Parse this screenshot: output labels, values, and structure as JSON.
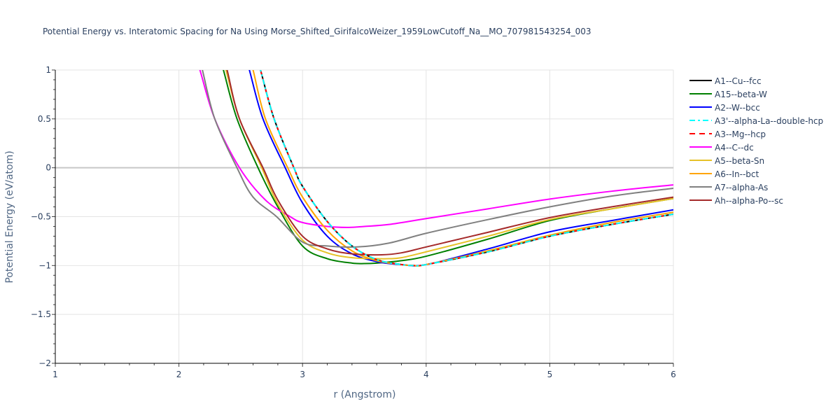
{
  "chart_data": {
    "type": "line",
    "title": "Potential Energy vs. Interatomic Spacing for Na Using Morse_Shifted_GirifalcoWeizer_1959LowCutoff_Na__MO_707981543254_003",
    "xlabel": "r (Angstrom)",
    "ylabel": "Potential Energy (eV/atom)",
    "xlim": [
      1,
      6
    ],
    "ylim": [
      -2,
      1
    ],
    "xticks": [
      "1",
      "2",
      "3",
      "4",
      "5",
      "6"
    ],
    "yticks": [
      "1",
      "0.5",
      "0",
      "−0.5",
      "−1",
      "−1.5",
      "−2"
    ],
    "grid": true,
    "legend_position": "right",
    "series": [
      {
        "name": "A1--Cu--fcc",
        "color": "#000000",
        "dash": "solid",
        "x": [
          2.66,
          2.77,
          2.93,
          3.0,
          3.2,
          3.4,
          3.6,
          3.8,
          3.9,
          4.0,
          4.5,
          5.0,
          5.5,
          6.0
        ],
        "y": [
          1.0,
          0.5,
          0.0,
          -0.19,
          -0.55,
          -0.8,
          -0.94,
          -0.99,
          -1.0,
          -0.99,
          -0.86,
          -0.7,
          -0.58,
          -0.475
        ]
      },
      {
        "name": "A15--beta-W",
        "color": "#008000",
        "dash": "solid",
        "x": [
          2.36,
          2.47,
          2.64,
          2.8,
          3.0,
          3.2,
          3.4,
          3.5,
          3.6,
          3.8,
          4.0,
          4.5,
          5.0,
          5.5,
          6.0
        ],
        "y": [
          1.0,
          0.5,
          0.0,
          -0.4,
          -0.8,
          -0.93,
          -0.975,
          -0.98,
          -0.975,
          -0.95,
          -0.905,
          -0.73,
          -0.54,
          -0.42,
          -0.315
        ]
      },
      {
        "name": "A2--W--bcc",
        "color": "#0000ff",
        "dash": "solid",
        "x": [
          2.57,
          2.68,
          2.86,
          3.0,
          3.2,
          3.4,
          3.6,
          3.8,
          4.0,
          4.5,
          5.0,
          5.5,
          6.0
        ],
        "y": [
          1.0,
          0.5,
          0.0,
          -0.36,
          -0.7,
          -0.88,
          -0.96,
          -0.99,
          -0.99,
          -0.83,
          -0.655,
          -0.54,
          -0.43
        ]
      },
      {
        "name": "A3'--alpha-La--double-hcp",
        "color": "#00ffff",
        "dash": "dashdot",
        "x": [
          2.66,
          2.77,
          2.93,
          3.0,
          3.2,
          3.4,
          3.6,
          3.8,
          3.9,
          4.0,
          4.5,
          5.0,
          5.5,
          6.0
        ],
        "y": [
          1.0,
          0.5,
          0.0,
          -0.19,
          -0.55,
          -0.8,
          -0.94,
          -0.99,
          -1.0,
          -0.99,
          -0.86,
          -0.7,
          -0.58,
          -0.475
        ]
      },
      {
        "name": "A3--Mg--hcp",
        "color": "#ff0000",
        "dash": "dash",
        "x": [
          2.66,
          2.77,
          2.93,
          3.0,
          3.2,
          3.4,
          3.6,
          3.8,
          3.9,
          4.0,
          4.5,
          5.0,
          5.5,
          6.0
        ],
        "y": [
          1.0,
          0.5,
          0.0,
          -0.19,
          -0.55,
          -0.8,
          -0.94,
          -0.99,
          -1.0,
          -0.99,
          -0.86,
          -0.7,
          -0.58,
          -0.475
        ]
      },
      {
        "name": "A4--C--dc",
        "color": "#ff00ff",
        "dash": "solid",
        "x": [
          2.17,
          2.29,
          2.49,
          2.7,
          2.9,
          3.0,
          3.2,
          3.36,
          3.5,
          3.7,
          4.0,
          4.5,
          5.0,
          5.5,
          6.0
        ],
        "y": [
          1.0,
          0.5,
          0.0,
          -0.33,
          -0.5,
          -0.56,
          -0.6,
          -0.61,
          -0.6,
          -0.58,
          -0.52,
          -0.42,
          -0.32,
          -0.24,
          -0.175
        ]
      },
      {
        "name": "A5--beta-Sn",
        "color": "#e6c229",
        "dash": "solid",
        "x": [
          2.38,
          2.49,
          2.67,
          2.8,
          3.0,
          3.2,
          3.4,
          3.6,
          3.7,
          3.8,
          4.0,
          4.5,
          5.0,
          5.5,
          6.0
        ],
        "y": [
          1.0,
          0.5,
          0.0,
          -0.37,
          -0.74,
          -0.87,
          -0.92,
          -0.93,
          -0.93,
          -0.92,
          -0.86,
          -0.7,
          -0.53,
          -0.42,
          -0.315
        ]
      },
      {
        "name": "A6--In--bct",
        "color": "#ffa500",
        "dash": "solid",
        "x": [
          2.6,
          2.7,
          2.88,
          3.0,
          3.2,
          3.4,
          3.6,
          3.8,
          3.9,
          4.0,
          4.5,
          5.0,
          5.5,
          6.0
        ],
        "y": [
          1.0,
          0.5,
          0.0,
          -0.3,
          -0.64,
          -0.85,
          -0.95,
          -0.99,
          -1.0,
          -0.99,
          -0.85,
          -0.69,
          -0.56,
          -0.455
        ]
      },
      {
        "name": "A7--alpha-As",
        "color": "#808080",
        "dash": "solid",
        "x": [
          2.19,
          2.29,
          2.47,
          2.6,
          2.79,
          3.0,
          3.2,
          3.44,
          3.7,
          4.0,
          4.5,
          5.0,
          5.5,
          6.0
        ],
        "y": [
          1.0,
          0.5,
          0.0,
          -0.3,
          -0.5,
          -0.76,
          -0.8,
          -0.81,
          -0.77,
          -0.67,
          -0.53,
          -0.4,
          -0.29,
          -0.21
        ]
      },
      {
        "name": "Ah--alpha-Po--sc",
        "color": "#a52a2a",
        "dash": "solid",
        "x": [
          2.39,
          2.49,
          2.68,
          2.8,
          3.0,
          3.2,
          3.4,
          3.64,
          3.8,
          4.0,
          4.5,
          5.0,
          5.5,
          6.0
        ],
        "y": [
          1.0,
          0.5,
          0.0,
          -0.33,
          -0.7,
          -0.83,
          -0.88,
          -0.89,
          -0.87,
          -0.81,
          -0.66,
          -0.51,
          -0.4,
          -0.3
        ]
      }
    ]
  }
}
